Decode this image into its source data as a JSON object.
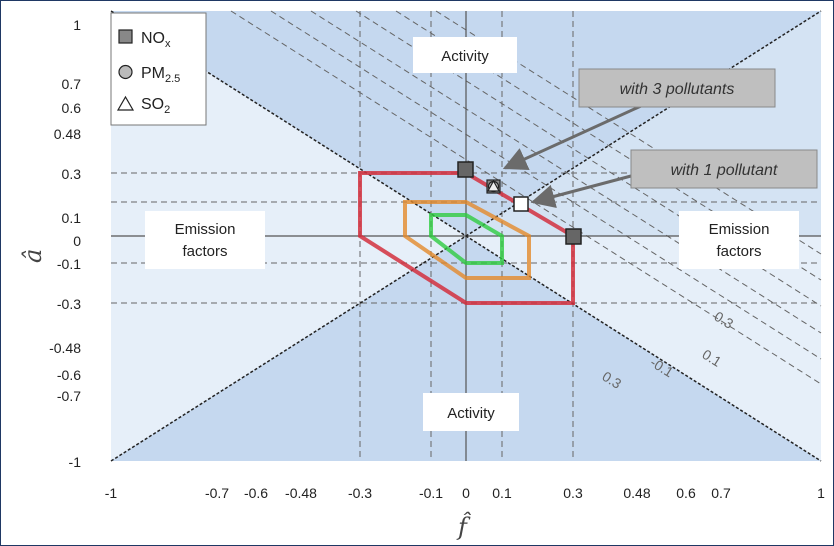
{
  "legend": {
    "nox": {
      "base": "NO",
      "sub": "x"
    },
    "pm": {
      "base": "PM",
      "sub": "2.5"
    },
    "so2": {
      "base": "SO",
      "sub": "2"
    }
  },
  "axes": {
    "x_symbol": "f̂",
    "y_symbol": "â",
    "x_ticks": [
      "-1",
      "-0.7",
      "-0.6",
      "-0.48",
      "-0.3",
      "-0.1",
      "0",
      "0.1",
      "0.3",
      "0.48",
      "0.6",
      "0.7",
      "1"
    ],
    "y_ticks": [
      "1",
      "0.7",
      "0.6",
      "0.48",
      "0.3",
      "0.1",
      "0",
      "-0.1",
      "-0.3",
      "-0.48",
      "-0.6",
      "-0.7",
      "-1"
    ]
  },
  "regions": {
    "activity_top": "Activity",
    "activity_bottom": "Activity",
    "emission_left_1": "Emission",
    "emission_left_2": "factors",
    "emission_right_1": "Emission",
    "emission_right_2": "factors"
  },
  "callouts": {
    "three": "with 3 pollutants",
    "one": "with 1 pollutant"
  },
  "contours": [
    "0.3",
    "0.1",
    "-0.1",
    "0.3"
  ],
  "colors": {
    "dark_region": "#c5d8ef",
    "light_region": "#e6eff9",
    "red": "#d2303e",
    "orange": "#e38a2a",
    "green": "#2ecc40",
    "callout_box": "#bfbfbf"
  }
}
